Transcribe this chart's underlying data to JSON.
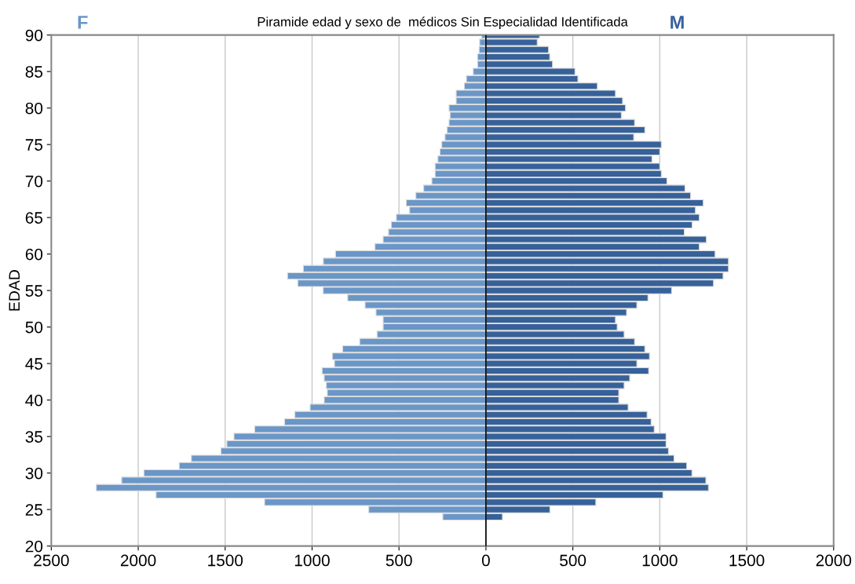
{
  "chart_data": {
    "type": "bar",
    "orientation": "horizontal",
    "stacked": true,
    "title": "Piramide edad y sexo de  médicos Sin Especialidad Identificada",
    "ylabel": "EDAD",
    "x": [
      90,
      89,
      88,
      87,
      86,
      85,
      84,
      83,
      82,
      81,
      80,
      79,
      78,
      77,
      76,
      75,
      74,
      73,
      72,
      71,
      70,
      69,
      68,
      67,
      66,
      65,
      64,
      63,
      62,
      61,
      60,
      59,
      58,
      57,
      56,
      55,
      54,
      53,
      52,
      51,
      50,
      49,
      48,
      47,
      46,
      45,
      44,
      43,
      42,
      41,
      40,
      39,
      38,
      37,
      36,
      35,
      34,
      33,
      32,
      31,
      30,
      29,
      28,
      27,
      26,
      25,
      24
    ],
    "series": [
      {
        "name": "F",
        "color": "#6a96c8",
        "values": [
          -24,
          -36,
          -39,
          -48,
          -48,
          -73,
          -112,
          -124,
          -171,
          -171,
          -212,
          -206,
          -212,
          -223,
          -235,
          -254,
          -264,
          -276,
          -292,
          -292,
          -311,
          -358,
          -403,
          -458,
          -439,
          -515,
          -544,
          -560,
          -591,
          -638,
          -865,
          -935,
          -1050,
          -1141,
          -1082,
          -936,
          -795,
          -695,
          -632,
          -591,
          -591,
          -626,
          -726,
          -824,
          -883,
          -871,
          -942,
          -930,
          -918,
          -912,
          -930,
          -1011,
          -1099,
          -1158,
          -1330,
          -1449,
          -1490,
          -1524,
          -1694,
          -1764,
          -1967,
          -2095,
          -2241,
          -1897,
          -1273,
          -674,
          -248
        ]
      },
      {
        "name": "M",
        "color": "#36619a",
        "values": [
          308,
          295,
          360,
          367,
          383,
          512,
          529,
          641,
          745,
          786,
          803,
          779,
          855,
          914,
          850,
          1009,
          1000,
          955,
          1000,
          1009,
          1041,
          1145,
          1177,
          1250,
          1205,
          1227,
          1186,
          1141,
          1268,
          1227,
          1318,
          1395,
          1395,
          1364,
          1309,
          1068,
          932,
          868,
          809,
          745,
          755,
          795,
          855,
          914,
          941,
          868,
          936,
          827,
          795,
          764,
          764,
          818,
          927,
          950,
          968,
          1036,
          1036,
          1050,
          1082,
          1155,
          1185,
          1265,
          1280,
          1018,
          632,
          368,
          95
        ]
      }
    ],
    "xlim": [
      -2500,
      2000
    ],
    "xticks": [
      {
        "value": -2500,
        "label": "2500"
      },
      {
        "value": -2000,
        "label": "2000"
      },
      {
        "value": -1500,
        "label": "1500"
      },
      {
        "value": -1000,
        "label": "1000"
      },
      {
        "value": -500,
        "label": "500"
      },
      0,
      500,
      1000,
      1500,
      2000
    ],
    "ylim": [
      20,
      90
    ],
    "yticks": [
      20,
      25,
      30,
      35,
      40,
      45,
      50,
      55,
      60,
      65,
      70,
      75,
      80,
      85,
      90
    ],
    "ref_lines": [
      {
        "axis": "x",
        "value": 0,
        "color": "#000000"
      }
    ],
    "grid": "x",
    "legend": false
  }
}
